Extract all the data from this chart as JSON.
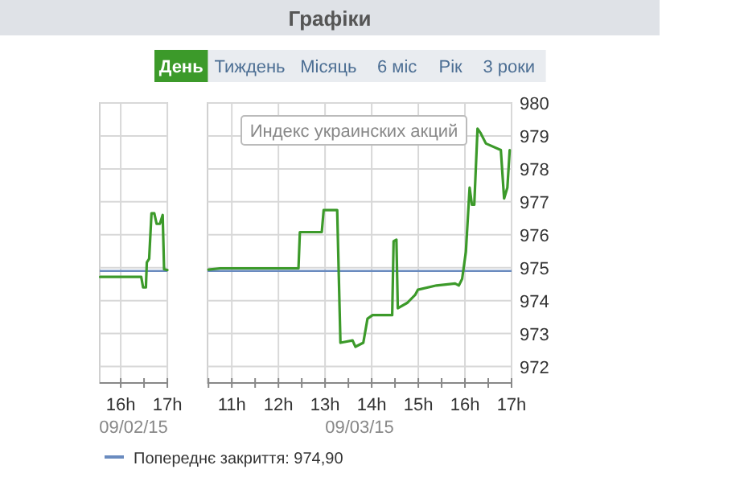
{
  "chart_data": [
    {
      "type": "line",
      "xlabel": "09/02/15",
      "xlim": [
        15.55,
        17
      ],
      "ylim": [
        971.5,
        980
      ],
      "xticks": [
        {
          "value": 16,
          "label": "16h"
        },
        {
          "value": 16.5,
          "label": null
        },
        {
          "value": 17,
          "label": "17h"
        }
      ],
      "yticks": [
        972,
        973,
        974,
        975,
        976,
        977,
        978,
        979,
        980
      ],
      "tick_labels": "x",
      "grid": true,
      "series": [
        {
          "color": "#3c9a2a",
          "x": [
            15.56,
            16.44,
            16.48,
            16.54,
            16.56,
            16.61,
            16.66,
            16.72,
            16.77,
            16.84,
            16.9,
            16.93,
            17
          ],
          "values": [
            974.72,
            974.72,
            974.4,
            974.4,
            975.16,
            975.27,
            976.65,
            976.65,
            976.33,
            976.33,
            976.6,
            974.95,
            974.93
          ]
        }
      ],
      "ref_lines": [
        {
          "axis": "y",
          "value": 974.9,
          "color": "#6a8bbf"
        }
      ]
    },
    {
      "type": "line",
      "title": "Графіки",
      "xlabel": "09/03/15",
      "xlim": [
        10.48,
        17
      ],
      "ylim": [
        971.5,
        980
      ],
      "xticks": [
        {
          "value": 10.5,
          "label": null
        },
        {
          "value": 11,
          "label": "11h"
        },
        {
          "value": 11.5,
          "label": null
        },
        {
          "value": 12,
          "label": "12h"
        },
        {
          "value": 12.5,
          "label": null
        },
        {
          "value": 13,
          "label": "13h"
        },
        {
          "value": 13.5,
          "label": null
        },
        {
          "value": 14,
          "label": "14h"
        },
        {
          "value": 14.5,
          "label": null
        },
        {
          "value": 15,
          "label": "15h"
        },
        {
          "value": 15.5,
          "label": null
        },
        {
          "value": 16,
          "label": "16h"
        },
        {
          "value": 16.5,
          "label": null
        },
        {
          "value": 17,
          "label": "17h"
        }
      ],
      "yticks": [
        972,
        973,
        974,
        975,
        976,
        977,
        978,
        979,
        980
      ],
      "grid": true,
      "series": [
        {
          "color": "#3c9a2a",
          "x": [
            10.5,
            10.75,
            12.43,
            12.46,
            12.93,
            12.97,
            13.26,
            13.33,
            13.59,
            13.65,
            13.82,
            13.91,
            14.02,
            14.44,
            14.47,
            14.53,
            14.56,
            14.76,
            14.93,
            14.99,
            15.39,
            15.79,
            15.87,
            15.94,
            16.02,
            16.1,
            16.15,
            16.2,
            16.27,
            16.33,
            16.45,
            16.77,
            16.84,
            16.91,
            16.96
          ],
          "values": [
            974.94,
            974.98,
            974.98,
            976.08,
            976.08,
            976.75,
            976.75,
            972.72,
            972.79,
            972.6,
            972.72,
            973.45,
            973.56,
            973.56,
            975.8,
            975.85,
            973.77,
            973.93,
            974.17,
            974.33,
            974.46,
            974.52,
            974.46,
            974.66,
            975.48,
            977.43,
            976.91,
            976.91,
            979.22,
            979.1,
            978.77,
            978.57,
            977.1,
            977.43,
            978.57
          ]
        }
      ],
      "ref_lines": [
        {
          "axis": "y",
          "value": 974.9,
          "label": "Попереднє закриття:  974,90",
          "color": "#6a8bbf"
        }
      ],
      "annotations": [
        "День",
        "Тиждень",
        "Місяць",
        "6 міс",
        "Рік",
        "3 роки",
        "Индекс украинских акций"
      ]
    }
  ]
}
